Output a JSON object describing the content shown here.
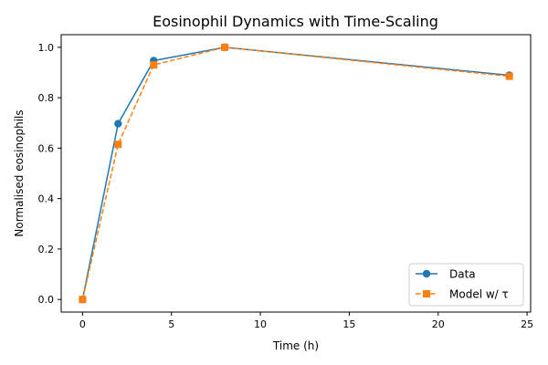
{
  "chart_data": {
    "type": "line",
    "title": "Eosinophil Dynamics with Time-Scaling",
    "xlabel": "Time (h)",
    "ylabel": "Normalised eosinophils",
    "xlim": [
      -1.2,
      25.2
    ],
    "ylim": [
      -0.05,
      1.05
    ],
    "xticks": [
      0,
      5,
      10,
      15,
      20,
      25
    ],
    "yticks": [
      0.0,
      0.2,
      0.4,
      0.6,
      0.8,
      1.0
    ],
    "xtick_labels": [
      "0",
      "5",
      "10",
      "15",
      "20",
      "25"
    ],
    "ytick_labels": [
      "0.0",
      "0.2",
      "0.4",
      "0.6",
      "0.8",
      "1.0"
    ],
    "grid": false,
    "legend_position": "bottom-right",
    "series": [
      {
        "name": "Data",
        "color": "#1f77b4",
        "line_style": "solid",
        "marker": "circle",
        "x": [
          0,
          2,
          4,
          8,
          24
        ],
        "y": [
          0.0,
          0.697,
          0.947,
          1.0,
          0.889
        ]
      },
      {
        "name": "Model w/ τ",
        "color": "#ff7f0e",
        "line_style": "dashed",
        "marker": "square",
        "x": [
          0,
          2,
          4,
          8,
          24
        ],
        "y": [
          0.0,
          0.615,
          0.93,
          1.0,
          0.885
        ]
      }
    ]
  }
}
